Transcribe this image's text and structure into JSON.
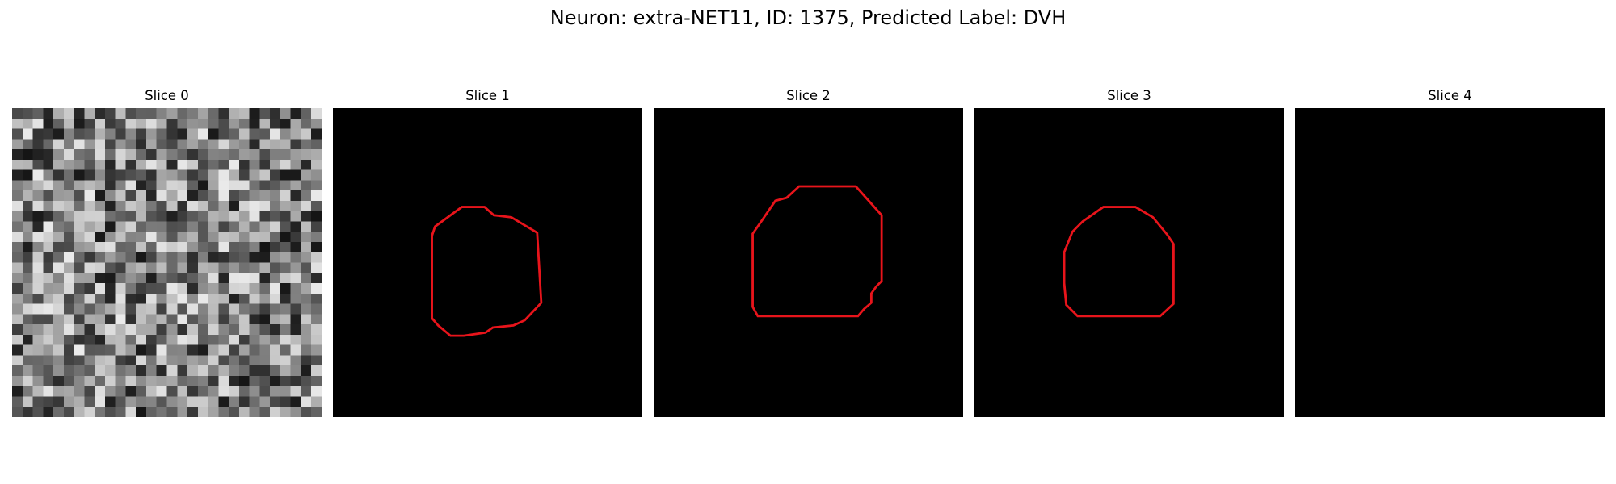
{
  "figure": {
    "title": "Neuron: extra-NET11, ID: 1375, Predicted Label: DVH"
  },
  "contour_color": "#e8141b",
  "colormap": "gray",
  "slices": [
    {
      "label": "Slice 0",
      "has_contour": false
    },
    {
      "label": "Slice 1",
      "has_contour": true
    },
    {
      "label": "Slice 2",
      "has_contour": true
    },
    {
      "label": "Slice 3",
      "has_contour": true
    },
    {
      "label": "Slice 4",
      "has_contour": false
    }
  ]
}
